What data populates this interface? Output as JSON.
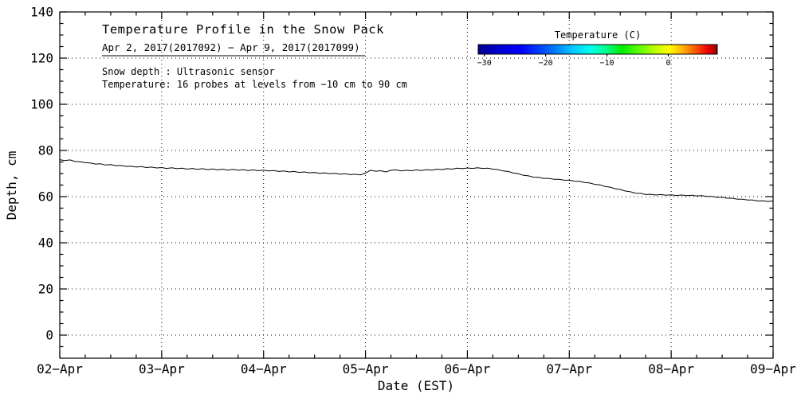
{
  "chart_data": {
    "type": "line",
    "title": "Temperature Profile in the Snow Pack",
    "subtitle": "Apr  2, 2017(2017092) − Apr  9, 2017(2017099)",
    "annotation_line1": "Snow depth : Ultrasonic sensor",
    "annotation_line2": "Temperature: 16 probes at levels from −10 cm to 90 cm",
    "xlabel": "Date (EST)",
    "ylabel": "Depth, cm",
    "xlim": [
      2,
      9
    ],
    "ylim": [
      -10,
      140
    ],
    "grid": true,
    "line_color": "#000000",
    "background": "#ffffff",
    "x_ticks": [
      2,
      3,
      4,
      5,
      6,
      7,
      8,
      9
    ],
    "x_ticklabels": [
      "02−Apr",
      "03−Apr",
      "04−Apr",
      "05−Apr",
      "06−Apr",
      "07−Apr",
      "08−Apr",
      "09−Apr"
    ],
    "y_ticks": [
      0,
      20,
      40,
      60,
      80,
      100,
      120,
      140
    ],
    "y_ticklabels": [
      "0",
      "20",
      "40",
      "60",
      "80",
      "100",
      "120",
      "140"
    ],
    "series": [
      {
        "name": "Snow depth",
        "x": [
          2,
          2.05,
          2.1,
          2.15,
          2.2,
          2.25,
          2.3,
          2.35,
          2.4,
          2.45,
          2.5,
          2.55,
          2.6,
          2.65,
          2.7,
          2.75,
          2.8,
          2.85,
          2.9,
          2.95,
          3,
          3.05,
          3.1,
          3.15,
          3.2,
          3.25,
          3.3,
          3.35,
          3.4,
          3.45,
          3.5,
          3.55,
          3.6,
          3.65,
          3.7,
          3.75,
          3.8,
          3.85,
          3.9,
          3.95,
          4,
          4.05,
          4.1,
          4.15,
          4.2,
          4.25,
          4.3,
          4.35,
          4.4,
          4.45,
          4.5,
          4.55,
          4.6,
          4.65,
          4.7,
          4.75,
          4.8,
          4.85,
          4.9,
          4.95,
          5,
          5.05,
          5.1,
          5.15,
          5.2,
          5.25,
          5.3,
          5.35,
          5.4,
          5.45,
          5.5,
          5.55,
          5.6,
          5.65,
          5.7,
          5.75,
          5.8,
          5.85,
          5.9,
          5.95,
          6,
          6.05,
          6.1,
          6.15,
          6.2,
          6.25,
          6.3,
          6.35,
          6.4,
          6.45,
          6.5,
          6.55,
          6.6,
          6.65,
          6.7,
          6.75,
          6.8,
          6.85,
          6.9,
          6.95,
          7,
          7.05,
          7.1,
          7.15,
          7.2,
          7.25,
          7.3,
          7.35,
          7.4,
          7.45,
          7.5,
          7.55,
          7.6,
          7.65,
          7.7,
          7.75,
          7.8,
          7.85,
          7.9,
          7.95,
          8,
          8.05,
          8.1,
          8.15,
          8.2,
          8.25,
          8.3,
          8.35,
          8.4,
          8.45,
          8.5,
          8.55,
          8.6,
          8.65,
          8.7,
          8.75,
          8.8,
          8.85,
          8.9,
          8.95,
          9
        ],
        "y": [
          76,
          75.6,
          75.9,
          75.2,
          75.1,
          74.7,
          74.6,
          74.1,
          74.2,
          73.7,
          73.9,
          73.4,
          73.5,
          73.1,
          73.2,
          72.8,
          73,
          72.6,
          72.8,
          72.4,
          72.6,
          72.2,
          72.5,
          72.1,
          72.3,
          71.9,
          72.2,
          71.8,
          72.1,
          71.7,
          72,
          71.6,
          71.9,
          71.5,
          71.8,
          71.4,
          71.7,
          71.3,
          71.6,
          71.2,
          71.5,
          71.1,
          71.3,
          70.9,
          71.1,
          70.7,
          70.9,
          70.5,
          70.7,
          70.3,
          70.5,
          70.1,
          70.3,
          69.9,
          70.1,
          69.7,
          69.9,
          69.5,
          69.7,
          69.4,
          70.2,
          71.4,
          71,
          71.2,
          70.7,
          71.4,
          71.6,
          71.1,
          71.4,
          71.2,
          71.6,
          71.3,
          71.7,
          71.5,
          71.9,
          71.7,
          72.1,
          71.9,
          72.3,
          72.1,
          72.4,
          72.2,
          72.5,
          72.2,
          72.3,
          71.9,
          71.7,
          71.1,
          70.9,
          70.2,
          69.9,
          69.2,
          69,
          68.4,
          68.3,
          67.9,
          67.9,
          67.5,
          67.5,
          67.1,
          67.1,
          66.7,
          66.6,
          66.1,
          65.9,
          65.3,
          65.1,
          64.4,
          64.1,
          63.4,
          63.1,
          62.4,
          62.1,
          61.5,
          61.4,
          60.9,
          61,
          60.7,
          60.9,
          60.6,
          60.8,
          60.5,
          60.7,
          60.4,
          60.6,
          60.3,
          60.4,
          60.1,
          60.1,
          59.7,
          59.7,
          59.3,
          59.3,
          58.9,
          58.9,
          58.5,
          58.5,
          58.1,
          58.2,
          57.9,
          58.1
        ]
      }
    ],
    "colorbar": {
      "title": "Temperature (C)",
      "min": -31,
      "max": 8,
      "ticks": [
        -30,
        -20,
        -10,
        0
      ],
      "tick_labels": [
        "−30",
        "−20",
        "−10",
        "0"
      ],
      "gradient": [
        {
          "offset": 0.0,
          "color": "#00008b"
        },
        {
          "offset": 0.08,
          "color": "#0000cd"
        },
        {
          "offset": 0.18,
          "color": "#0000ff"
        },
        {
          "offset": 0.3,
          "color": "#0066ff"
        },
        {
          "offset": 0.4,
          "color": "#00ccff"
        },
        {
          "offset": 0.47,
          "color": "#00ffee"
        },
        {
          "offset": 0.53,
          "color": "#00ff99"
        },
        {
          "offset": 0.6,
          "color": "#00ee00"
        },
        {
          "offset": 0.68,
          "color": "#66ff00"
        },
        {
          "offset": 0.75,
          "color": "#ccff00"
        },
        {
          "offset": 0.8,
          "color": "#ffff00"
        },
        {
          "offset": 0.86,
          "color": "#ffaa00"
        },
        {
          "offset": 0.91,
          "color": "#ff5500"
        },
        {
          "offset": 0.96,
          "color": "#ee0000"
        },
        {
          "offset": 1.0,
          "color": "#990000"
        }
      ]
    }
  }
}
